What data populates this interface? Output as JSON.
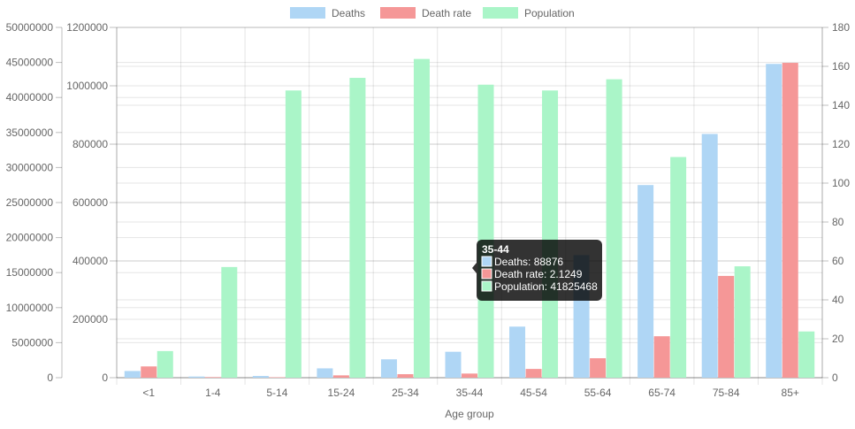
{
  "chart_data": {
    "type": "bar",
    "title": "",
    "xlabel": "Age group",
    "categories": [
      "<1",
      "1-4",
      "5-14",
      "15-24",
      "25-34",
      "35-44",
      "45-54",
      "55-64",
      "65-74",
      "75-84",
      "85+"
    ],
    "series": [
      {
        "name": "Deaths",
        "axis": "left-inner",
        "color": "#afd6f5",
        "values": [
          23000,
          4000,
          6000,
          32000,
          63000,
          88876,
          175000,
          420000,
          660000,
          835000,
          1075000
        ]
      },
      {
        "name": "Death rate",
        "axis": "right",
        "color": "#f59797",
        "values": [
          5.8,
          0.3,
          0.2,
          1.2,
          1.8,
          2.1249,
          4.5,
          10.0,
          21.3,
          52.3,
          161.8
        ]
      },
      {
        "name": "Population",
        "axis": "left-outer",
        "color": "#aaf5c8",
        "values": [
          3800000,
          15800000,
          41000000,
          42800000,
          45500000,
          41825468,
          41000000,
          42600000,
          31500000,
          15900000,
          6600000
        ]
      }
    ],
    "axes": {
      "left_outer": {
        "min": 0,
        "max": 50000000,
        "ticks": [
          "0",
          "5000000",
          "10000000",
          "15000000",
          "20000000",
          "25000000",
          "30000000",
          "35000000",
          "40000000",
          "45000000",
          "50000000"
        ]
      },
      "left_inner": {
        "min": 0,
        "max": 1200000,
        "ticks": [
          "0",
          "200000",
          "400000",
          "600000",
          "800000",
          "1000000",
          "1200000"
        ]
      },
      "right": {
        "min": 0,
        "max": 180,
        "ticks": [
          "0",
          "20",
          "40",
          "60",
          "80",
          "100",
          "120",
          "140",
          "160",
          "180"
        ]
      }
    },
    "grid": true,
    "legend_position": "top",
    "tooltip": {
      "title": "35-44",
      "lines": [
        "Deaths: 88876",
        "Death rate: 2.1249",
        "Population: 41825468"
      ]
    }
  }
}
